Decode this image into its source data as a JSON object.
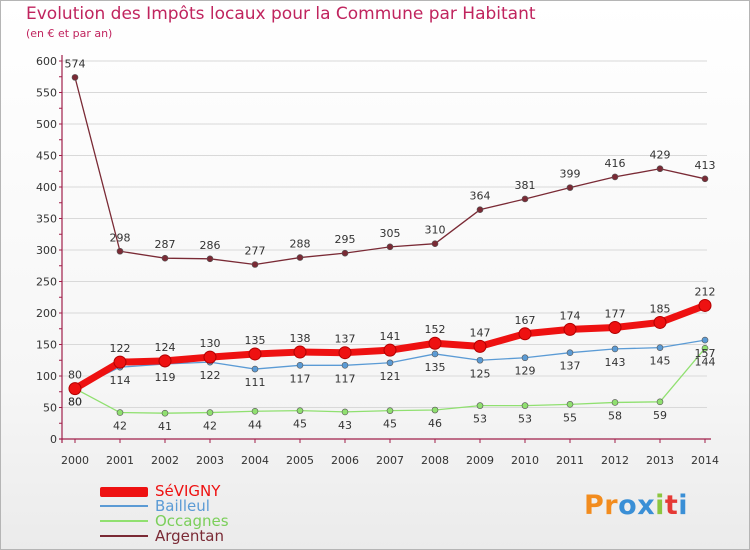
{
  "header": {
    "title": "Evolution des Impôts locaux pour la Commune par Habitant",
    "subtitle": "(en € et par an)"
  },
  "logo": {
    "text": "Proxiti",
    "letters": [
      "P",
      "r",
      "o",
      "x",
      "i",
      "t",
      "i"
    ]
  },
  "colors": {
    "title": "#c0245e",
    "axis": "#a01f4a",
    "grid": "#d9d9d9",
    "label": "#333333",
    "logo": [
      "#f28c1e",
      "#f28c1e",
      "#3a8fd6",
      "#3a8fd6",
      "#8cc63f",
      "#e53935",
      "#3a8fd6"
    ]
  },
  "chart_data": {
    "type": "line",
    "title": "Evolution des Impôts locaux pour la Commune par Habitant",
    "subtitle": "(en € et par an)",
    "xlabel": "",
    "ylabel": "",
    "ylim": [
      0,
      600
    ],
    "yticks": [
      0,
      50,
      100,
      150,
      200,
      250,
      300,
      350,
      400,
      450,
      500,
      550,
      600
    ],
    "grid": "horizontal",
    "legend_position": "bottom-left",
    "categories": [
      "2000",
      "2001",
      "2002",
      "2003",
      "2004",
      "2005",
      "2006",
      "2007",
      "2008",
      "2009",
      "2010",
      "2011",
      "2012",
      "2013",
      "2014"
    ],
    "series": [
      {
        "name": "Argentan",
        "color": "#7a2a35",
        "style": "thin",
        "labels": "above",
        "values": [
          574,
          298,
          287,
          286,
          277,
          288,
          295,
          305,
          310,
          364,
          381,
          399,
          416,
          429,
          413
        ]
      },
      {
        "name": "Occagnes",
        "color": "#90e070",
        "style": "thin",
        "labels": "below",
        "values": [
          80,
          42,
          41,
          42,
          44,
          45,
          43,
          45,
          46,
          53,
          53,
          55,
          58,
          59,
          144
        ]
      },
      {
        "name": "Bailleul",
        "color": "#5b9bd5",
        "style": "thin",
        "labels": "below",
        "values": [
          80,
          114,
          119,
          122,
          111,
          117,
          117,
          121,
          135,
          125,
          129,
          137,
          143,
          145,
          157
        ]
      },
      {
        "name": "SéVIGNY",
        "color": "#ee1111",
        "style": "thick",
        "labels": "above",
        "values": [
          80,
          122,
          124,
          130,
          135,
          138,
          137,
          141,
          152,
          147,
          167,
          174,
          177,
          185,
          212
        ]
      }
    ],
    "legend_order": [
      "SéVIGNY",
      "Bailleul",
      "Occagnes",
      "Argentan"
    ]
  }
}
